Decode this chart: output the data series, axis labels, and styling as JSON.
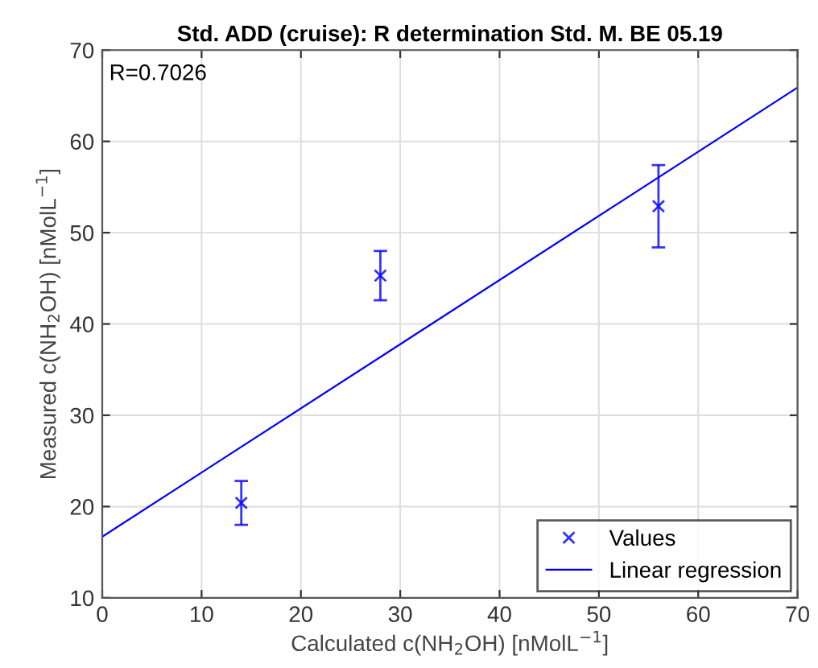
{
  "chart_data": {
    "type": "scatter",
    "title": "Std. ADD (cruise): R determination Std. M. BE 05.19",
    "xlabel": "Calculated c(NH$_{2}$OH) [nMolL$^{−1}$]",
    "ylabel": "Measured c(NH$_{2}$OH) [nMolL$^{−1}$]",
    "annotations": [
      "R=0.7026"
    ],
    "series": [
      {
        "name": "Values",
        "color": "#0000ff",
        "x": [
          14,
          28,
          56
        ],
        "values": [
          20.4,
          45.3,
          52.9
        ],
        "errors": [
          2.4,
          2.7,
          4.5
        ],
        "marker": "cross"
      },
      {
        "name": "Linear regression",
        "type": "line",
        "color": "#0000ff",
        "x": [
          0,
          70
        ],
        "values": [
          16.7,
          65.9
        ],
        "line_style": "solid"
      }
    ],
    "xlim": [
      0,
      70
    ],
    "ylim": [
      10,
      70
    ],
    "xticks": [
      0,
      10,
      20,
      30,
      40,
      50,
      60,
      70
    ],
    "yticks": [
      10,
      20,
      30,
      40,
      50,
      60,
      70
    ],
    "grid": true,
    "legend": "bottom right"
  }
}
